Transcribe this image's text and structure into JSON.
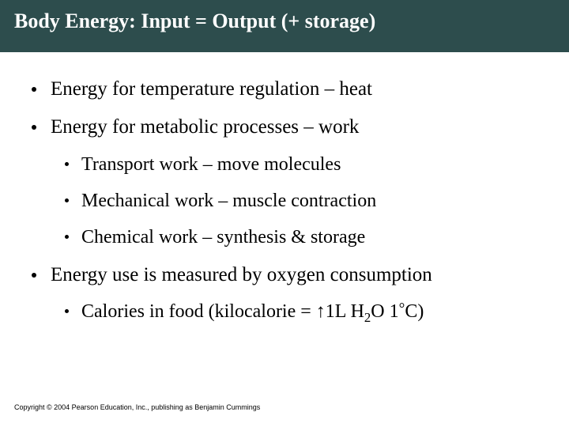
{
  "title": "Body Energy: Input = Output (+ storage)",
  "bullets": {
    "b1": "Energy for temperature regulation – heat",
    "b2": "Energy for metabolic processes – work",
    "b2a": "Transport work – move molecules",
    "b2b": "Mechanical work – muscle contraction",
    "b2c": "Chemical work – synthesis & storage",
    "b3": "Energy use is measured by oxygen consumption",
    "b3a_prefix": "Calories in food (kilocalorie = ",
    "b3a_arrow": "↑",
    "b3a_mid1": "1L  H",
    "b3a_sub": "2",
    "b3a_mid2": "O  1",
    "b3a_deg": "°",
    "b3a_suffix": "C)"
  },
  "footer": "Copyright © 2004 Pearson Education, Inc., publishing as Benjamin Cummings",
  "colors": {
    "title_bg": "#2d4d4d",
    "title_fg": "#ffffff",
    "body_text": "#000000",
    "page_bg": "#ffffff"
  },
  "typography": {
    "title_fontsize": 26,
    "body_fontsize": 25,
    "sub_fontsize": 24,
    "footer_fontsize": 9,
    "font_family": "Georgia serif"
  }
}
